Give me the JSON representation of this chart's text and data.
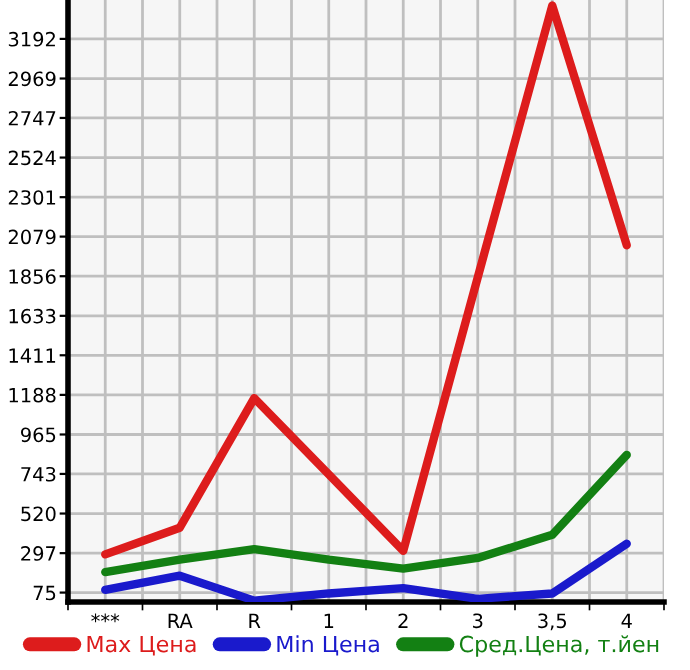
{
  "chart_data": {
    "type": "line",
    "categories": [
      "***",
      "RA",
      "R",
      "1",
      "2",
      "3",
      "3,5",
      "4"
    ],
    "series": [
      {
        "name": "Max Цена",
        "color": "#dd1c1c",
        "values": [
          290,
          440,
          1170,
          740,
          310,
          1850,
          3380,
          2030
        ]
      },
      {
        "name": "Min Цена",
        "color": "#1a1acc",
        "values": [
          90,
          170,
          30,
          70,
          100,
          40,
          70,
          350
        ]
      },
      {
        "name": "Сред.Цена, т.йен",
        "color": "#138013",
        "values": [
          190,
          260,
          320,
          260,
          210,
          270,
          400,
          850
        ]
      }
    ],
    "ylim": [
      22,
      3411
    ],
    "yticks": [
      75,
      297,
      520,
      743,
      965,
      1188,
      1411,
      1633,
      1856,
      2079,
      2301,
      2524,
      2747,
      2969,
      3192
    ],
    "grid": true,
    "legend": "bottom",
    "marker": "none",
    "line_style": "solid"
  }
}
